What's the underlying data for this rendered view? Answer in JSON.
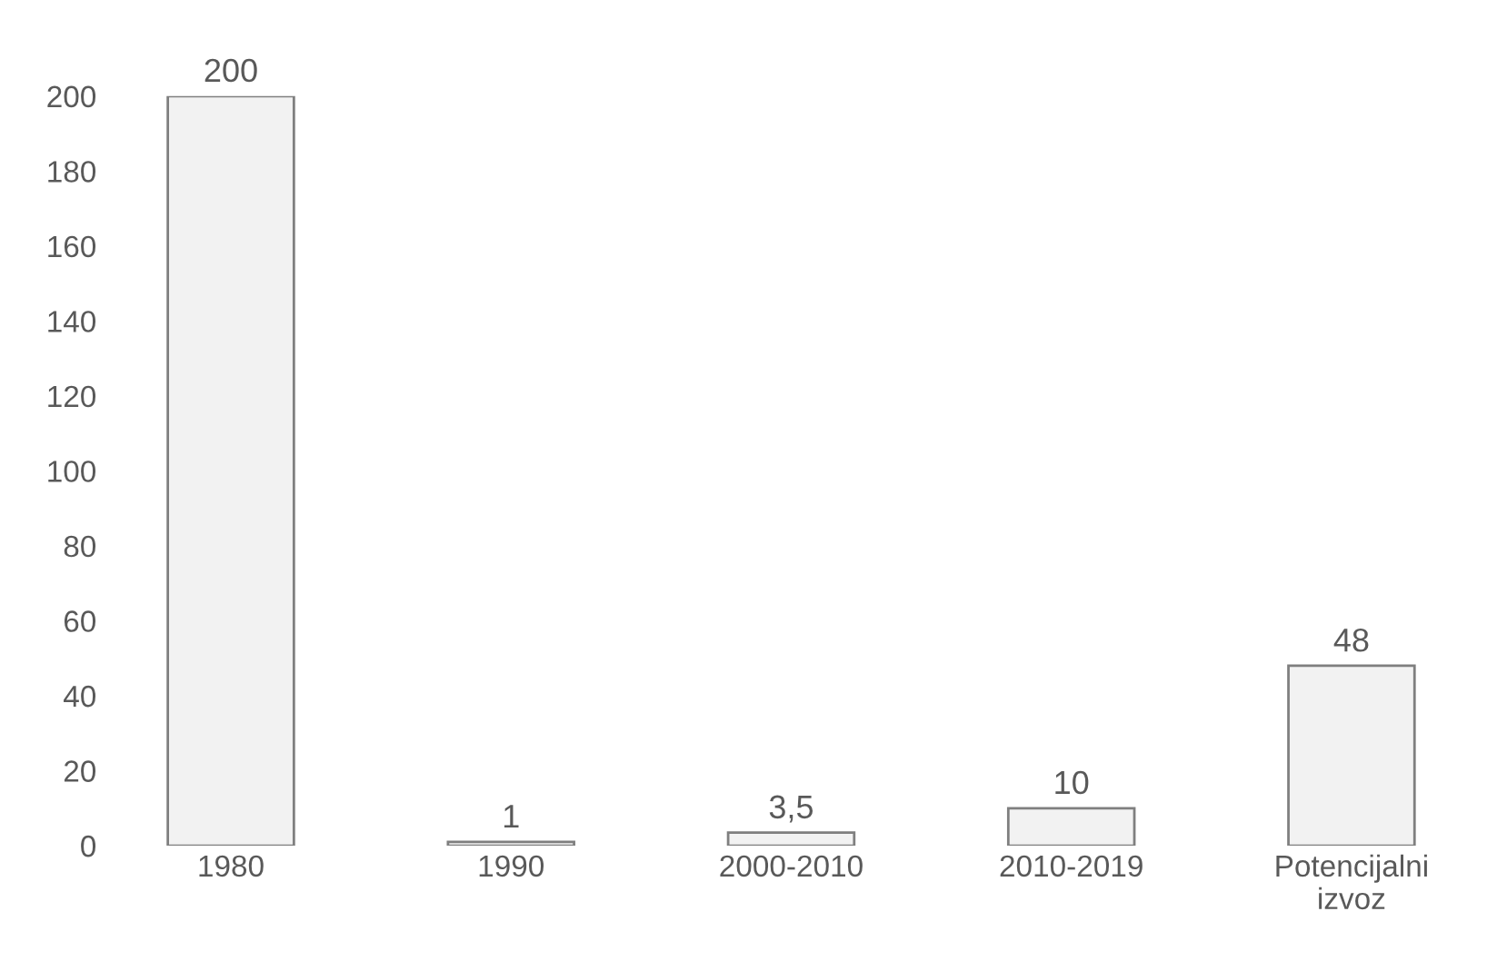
{
  "chart_data": {
    "type": "bar",
    "categories": [
      "1980",
      "1990",
      "2000-2010",
      "2010-2019",
      "Potencijalni\nizvoz"
    ],
    "values": [
      200,
      1,
      3.5,
      10,
      48
    ],
    "value_labels": [
      "200",
      "1",
      "3,5",
      "10",
      "48"
    ],
    "color": "#f2f2f2",
    "ylim": [
      0,
      200
    ],
    "yticks": [
      0,
      20,
      40,
      60,
      80,
      100,
      120,
      140,
      160,
      180,
      200
    ],
    "grid": false
  }
}
